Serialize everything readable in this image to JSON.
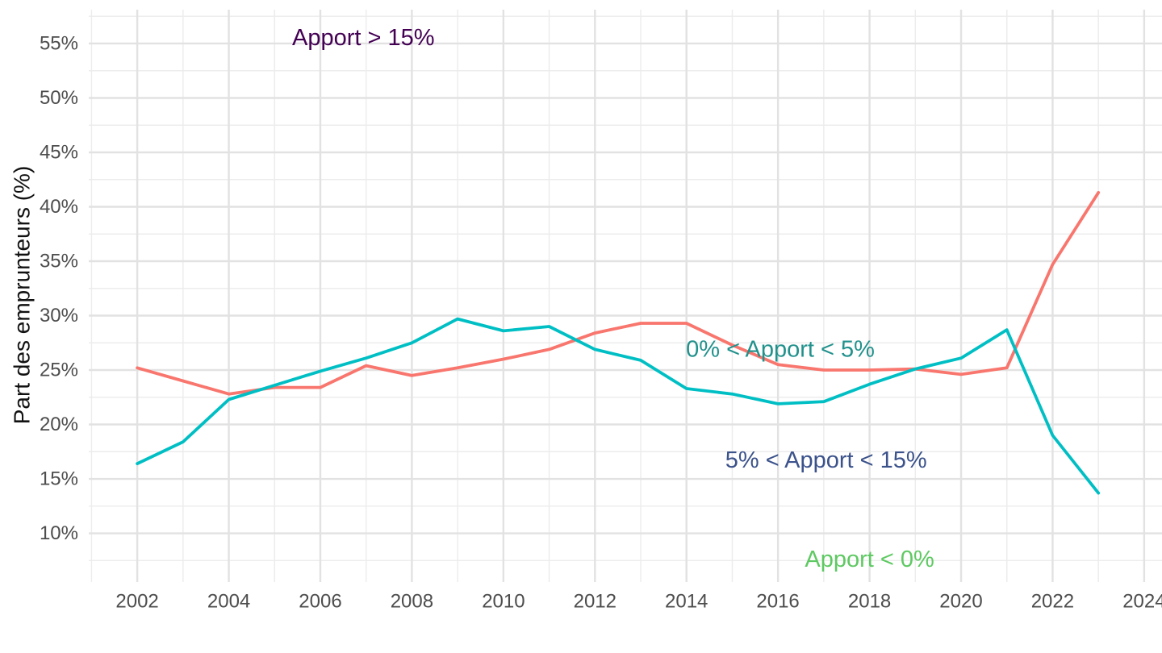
{
  "page": {
    "background": "#FFFFFF"
  },
  "chart_data": {
    "type": "line",
    "title": "",
    "xlabel": "",
    "ylabel": "Part des emprunteurs (%)",
    "x": [
      2002,
      2003,
      2004,
      2005,
      2006,
      2007,
      2008,
      2009,
      2010,
      2011,
      2012,
      2013,
      2014,
      2015,
      2016,
      2017,
      2018,
      2019,
      2020,
      2021,
      2022,
      2023
    ],
    "series": [
      {
        "name": "series-salmon",
        "color": "#F8766D",
        "values": [
          25.2,
          24.0,
          22.8,
          23.4,
          23.4,
          25.4,
          24.5,
          25.2,
          26.0,
          26.9,
          28.4,
          29.3,
          29.3,
          27.3,
          25.5,
          25.0,
          25.0,
          25.1,
          24.6,
          25.2,
          34.7,
          41.3
        ]
      },
      {
        "name": "series-teal",
        "color": "#00BFC4",
        "values": [
          16.4,
          18.4,
          22.3,
          23.6,
          24.9,
          26.1,
          27.5,
          29.7,
          28.6,
          29.0,
          26.9,
          25.9,
          23.3,
          22.8,
          21.9,
          22.1,
          23.7,
          25.1,
          26.1,
          28.7,
          19.0,
          13.7
        ]
      }
    ],
    "annotations": [
      {
        "text": "Apport > 15%",
        "color": "#440154",
        "x": 2006.94,
        "y": 55.5
      },
      {
        "text": "0% < Apport < 5%",
        "color": "#21918C",
        "x": 2016.05,
        "y": 26.9
      },
      {
        "text": "5% < Apport < 15%",
        "color": "#3B528B",
        "x": 2017.05,
        "y": 16.7
      },
      {
        "text": "Apport < 0%",
        "color": "#5EC962",
        "x": 2018.0,
        "y": 7.6
      }
    ],
    "x_axis": {
      "lim": [
        2000.94,
        2024.39
      ],
      "major_ticks": [
        2002,
        2004,
        2006,
        2008,
        2010,
        2012,
        2014,
        2016,
        2018,
        2020,
        2022,
        2024
      ],
      "minor_ticks": [
        2001,
        2003,
        2005,
        2007,
        2009,
        2011,
        2013,
        2015,
        2017,
        2019,
        2021,
        2023
      ],
      "tick_suffix": ""
    },
    "y_axis": {
      "lim": [
        5.52,
        58.11
      ],
      "major_ticks": [
        10,
        15,
        20,
        25,
        30,
        35,
        40,
        45,
        50,
        55
      ],
      "minor_ticks": [
        7.5,
        12.5,
        17.5,
        22.5,
        27.5,
        32.5,
        37.5,
        42.5,
        47.5,
        52.5,
        57.5
      ],
      "tick_suffix": "%"
    },
    "grid": {
      "major_color": "#E2E2E2",
      "minor_color": "#ECECEC",
      "major_width": 2.4,
      "minor_width": 1.4
    },
    "style": {
      "tick_label_color": "#4D4D4D",
      "axis_title_color": "#111111",
      "line_width": 3.8,
      "background": "#FFFFFF"
    },
    "legend_position": "none"
  }
}
